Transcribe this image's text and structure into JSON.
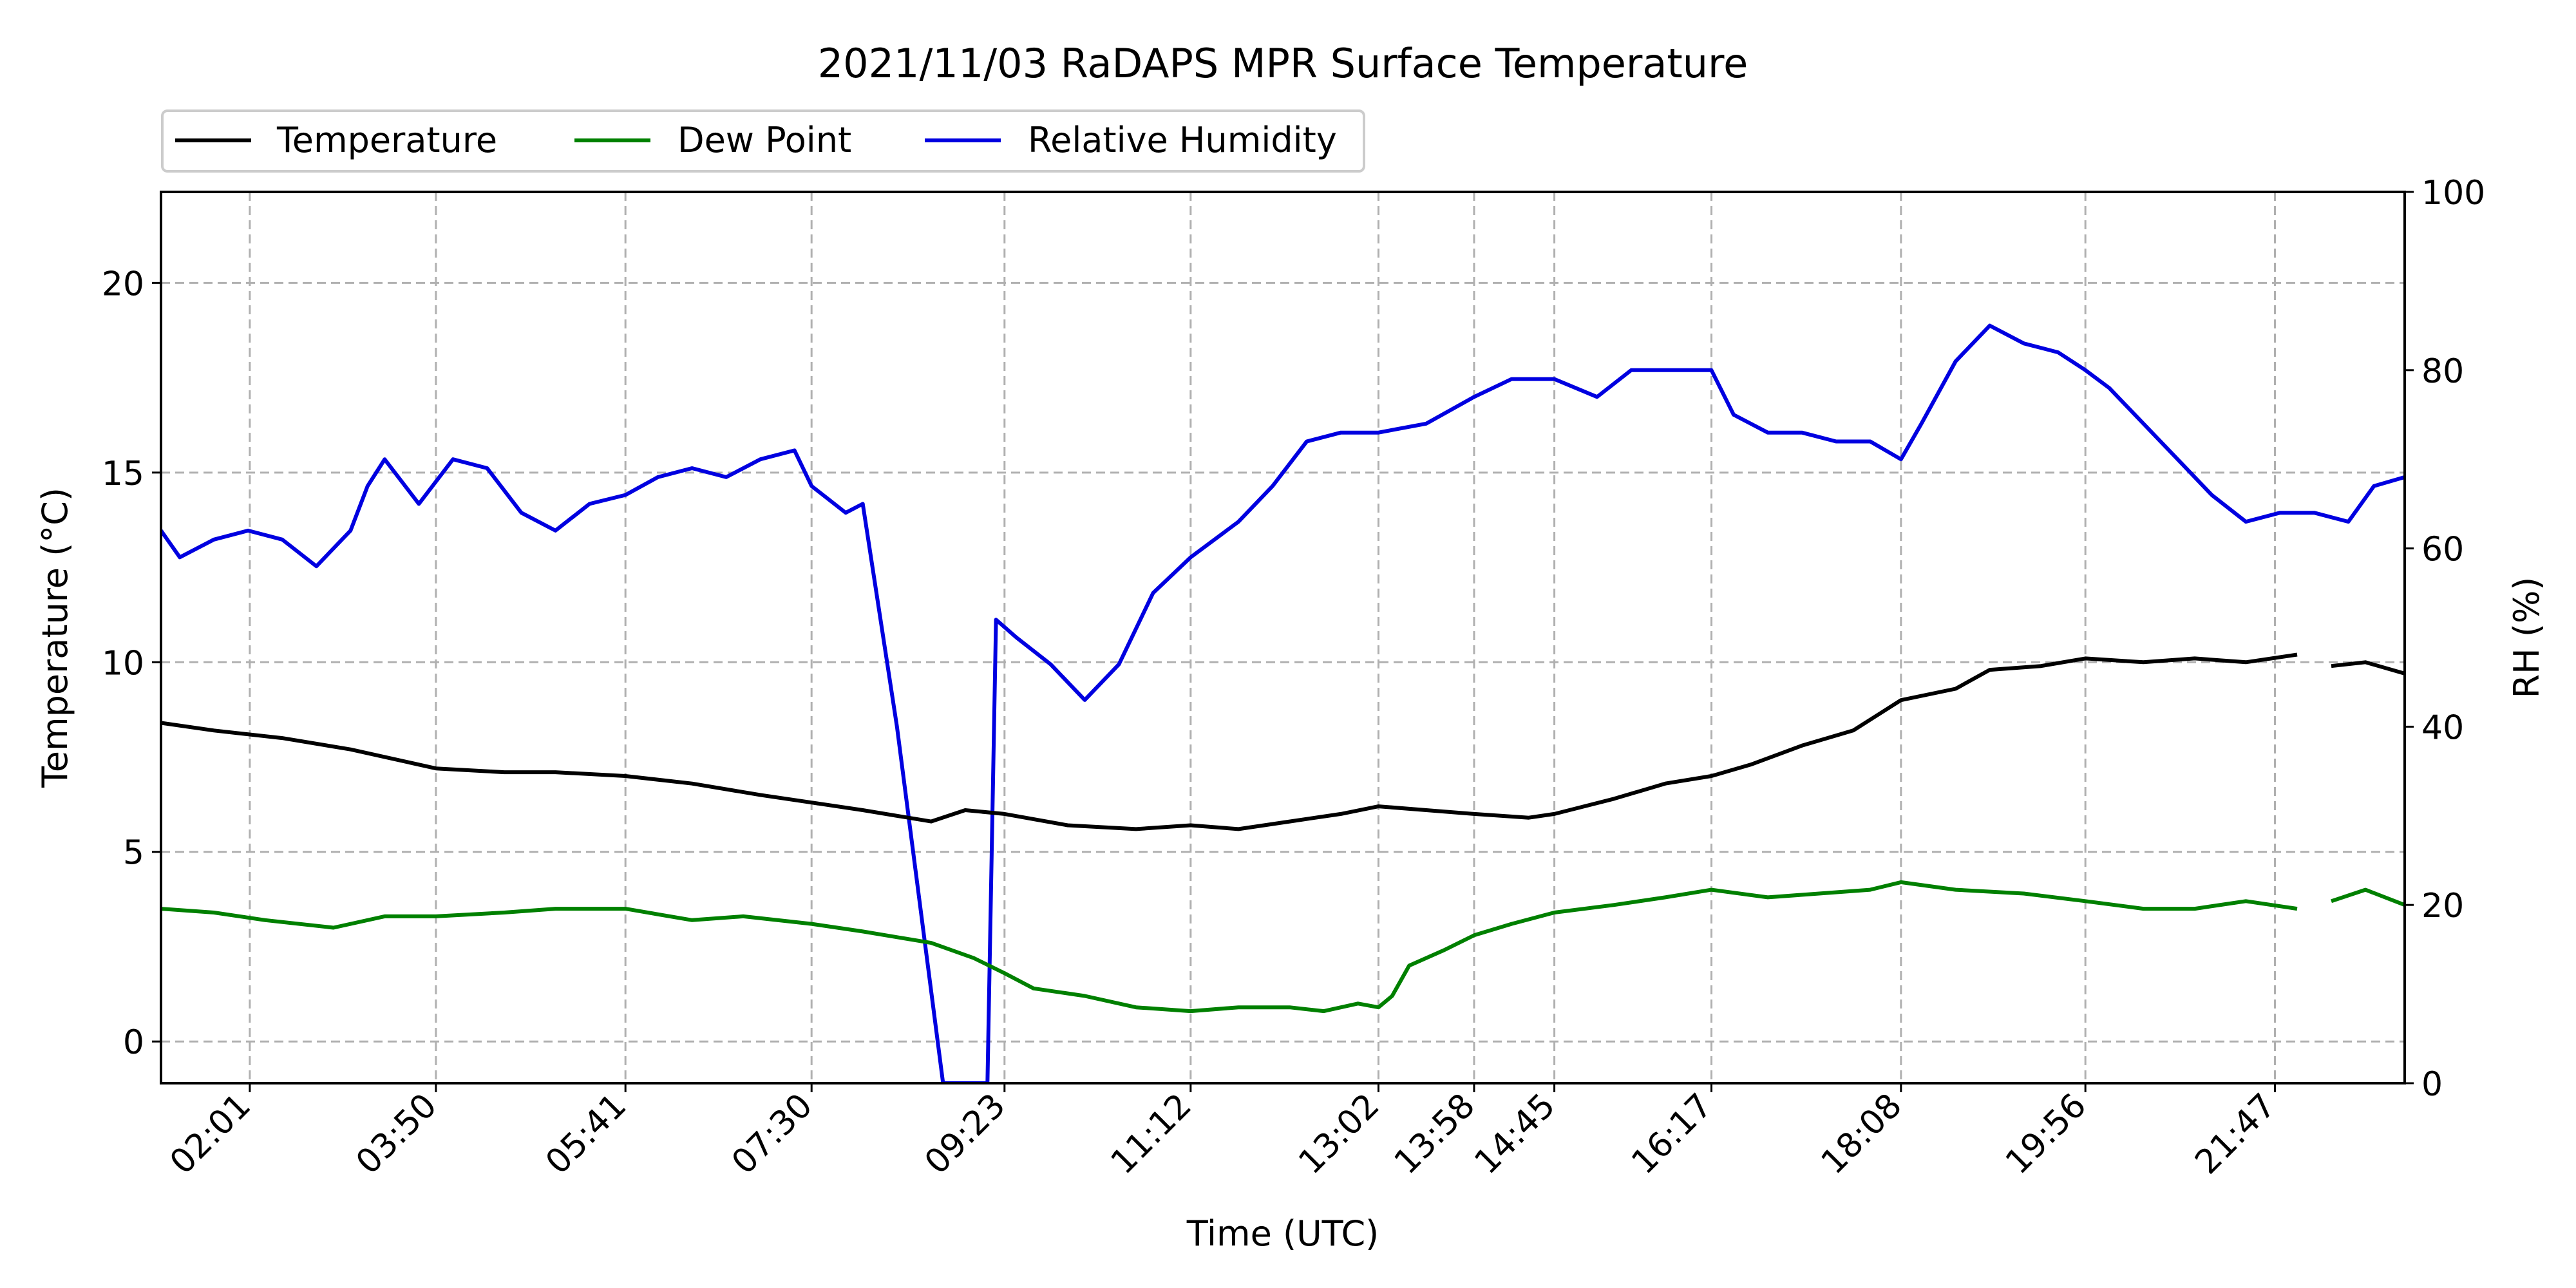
{
  "chart_data": {
    "type": "line",
    "title": "2021/11/03 RaDAPS MPR Surface Temperature",
    "xlabel": "Time (UTC)",
    "ylabel": "Temperature ($^\\circ$C)",
    "ylabel_display": "Temperature (°C)",
    "y2label": "RH (%)",
    "xlim": [
      "01:09",
      "23:03"
    ],
    "ylim": [
      -1.1,
      22.4
    ],
    "y2lim": [
      0,
      100
    ],
    "x_tick_labels": [
      "02:01",
      "03:50",
      "05:41",
      "07:30",
      "09:23",
      "11:12",
      "13:02",
      "13:58",
      "14:45",
      "16:17",
      "18:08",
      "19:56",
      "21:47"
    ],
    "y_ticks": [
      0,
      5,
      10,
      15,
      20
    ],
    "y2_ticks": [
      0,
      20,
      40,
      60,
      80,
      100
    ],
    "grid": true,
    "legend_position": "above top-left",
    "series": [
      {
        "name": "Temperature",
        "axis": "left",
        "color": "#000000",
        "points": [
          [
            "01:09",
            8.4
          ],
          [
            "01:40",
            8.2
          ],
          [
            "02:20",
            8.0
          ],
          [
            "03:00",
            7.7
          ],
          [
            "03:50",
            7.2
          ],
          [
            "04:30",
            7.1
          ],
          [
            "05:00",
            7.1
          ],
          [
            "05:41",
            7.0
          ],
          [
            "06:20",
            6.8
          ],
          [
            "07:00",
            6.5
          ],
          [
            "07:30",
            6.3
          ],
          [
            "08:00",
            6.1
          ],
          [
            "08:40",
            5.8
          ],
          [
            "09:00",
            6.1
          ],
          [
            "09:23",
            6.0
          ],
          [
            "10:00",
            5.7
          ],
          [
            "10:40",
            5.6
          ],
          [
            "11:12",
            5.7
          ],
          [
            "11:40",
            5.6
          ],
          [
            "12:10",
            5.8
          ],
          [
            "12:40",
            6.0
          ],
          [
            "13:02",
            6.2
          ],
          [
            "13:30",
            6.1
          ],
          [
            "13:58",
            6.0
          ],
          [
            "14:30",
            5.9
          ],
          [
            "14:45",
            6.0
          ],
          [
            "15:20",
            6.4
          ],
          [
            "15:50",
            6.8
          ],
          [
            "16:17",
            7.0
          ],
          [
            "16:40",
            7.3
          ],
          [
            "17:10",
            7.8
          ],
          [
            "17:40",
            8.2
          ],
          [
            "18:08",
            9.0
          ],
          [
            "18:40",
            9.3
          ],
          [
            "19:00",
            9.8
          ],
          [
            "19:30",
            9.9
          ],
          [
            "19:56",
            10.1
          ],
          [
            "20:30",
            10.0
          ],
          [
            "21:00",
            10.1
          ],
          [
            "21:30",
            10.0
          ],
          [
            "22:00",
            10.2
          ],
          [
            "22:10",
            null
          ],
          [
            "22:20",
            9.9
          ],
          [
            "22:40",
            10.0
          ],
          [
            "23:03",
            9.7
          ]
        ]
      },
      {
        "name": "Dew Point",
        "axis": "left",
        "color": "#008000",
        "points": [
          [
            "01:09",
            3.5
          ],
          [
            "01:40",
            3.4
          ],
          [
            "02:10",
            3.2
          ],
          [
            "02:50",
            3.0
          ],
          [
            "03:20",
            3.3
          ],
          [
            "03:50",
            3.3
          ],
          [
            "04:30",
            3.4
          ],
          [
            "05:00",
            3.5
          ],
          [
            "05:41",
            3.5
          ],
          [
            "06:20",
            3.2
          ],
          [
            "06:50",
            3.3
          ],
          [
            "07:30",
            3.1
          ],
          [
            "08:00",
            2.9
          ],
          [
            "08:40",
            2.6
          ],
          [
            "09:05",
            2.2
          ],
          [
            "09:23",
            1.8
          ],
          [
            "09:40",
            1.4
          ],
          [
            "10:10",
            1.2
          ],
          [
            "10:40",
            0.9
          ],
          [
            "11:12",
            0.8
          ],
          [
            "11:40",
            0.9
          ],
          [
            "12:10",
            0.9
          ],
          [
            "12:30",
            0.8
          ],
          [
            "12:50",
            1.0
          ],
          [
            "13:02",
            0.9
          ],
          [
            "13:10",
            1.2
          ],
          [
            "13:20",
            2.0
          ],
          [
            "13:40",
            2.4
          ],
          [
            "13:58",
            2.8
          ],
          [
            "14:20",
            3.1
          ],
          [
            "14:45",
            3.4
          ],
          [
            "15:20",
            3.6
          ],
          [
            "15:50",
            3.8
          ],
          [
            "16:17",
            4.0
          ],
          [
            "16:50",
            3.8
          ],
          [
            "17:20",
            3.9
          ],
          [
            "17:50",
            4.0
          ],
          [
            "18:08",
            4.2
          ],
          [
            "18:40",
            4.0
          ],
          [
            "19:20",
            3.9
          ],
          [
            "19:56",
            3.7
          ],
          [
            "20:30",
            3.5
          ],
          [
            "21:00",
            3.5
          ],
          [
            "21:30",
            3.7
          ],
          [
            "22:00",
            3.5
          ],
          [
            "22:10",
            null
          ],
          [
            "22:20",
            3.7
          ],
          [
            "22:40",
            4.0
          ],
          [
            "23:03",
            3.6
          ]
        ]
      },
      {
        "name": "Relative Humidity",
        "axis": "right",
        "color": "#0000e0",
        "points": [
          [
            "01:09",
            62
          ],
          [
            "01:20",
            59
          ],
          [
            "01:40",
            61
          ],
          [
            "02:00",
            62
          ],
          [
            "02:20",
            61
          ],
          [
            "02:40",
            58
          ],
          [
            "03:00",
            62
          ],
          [
            "03:10",
            67
          ],
          [
            "03:20",
            70
          ],
          [
            "03:40",
            65
          ],
          [
            "04:00",
            70
          ],
          [
            "04:20",
            69
          ],
          [
            "04:40",
            64
          ],
          [
            "05:00",
            62
          ],
          [
            "05:20",
            65
          ],
          [
            "05:41",
            66
          ],
          [
            "06:00",
            68
          ],
          [
            "06:20",
            69
          ],
          [
            "06:40",
            68
          ],
          [
            "07:00",
            70
          ],
          [
            "07:20",
            71
          ],
          [
            "07:30",
            67
          ],
          [
            "07:50",
            64
          ],
          [
            "08:00",
            65
          ],
          [
            "08:20",
            40
          ],
          [
            "08:47",
            0
          ],
          [
            "09:13",
            0
          ],
          [
            "09:18",
            52
          ],
          [
            "09:30",
            50
          ],
          [
            "09:50",
            47
          ],
          [
            "10:10",
            43
          ],
          [
            "10:30",
            47
          ],
          [
            "10:50",
            55
          ],
          [
            "11:12",
            59
          ],
          [
            "11:40",
            63
          ],
          [
            "12:00",
            67
          ],
          [
            "12:20",
            72
          ],
          [
            "12:40",
            73
          ],
          [
            "13:02",
            73
          ],
          [
            "13:30",
            74
          ],
          [
            "13:58",
            77
          ],
          [
            "14:20",
            79
          ],
          [
            "14:45",
            79
          ],
          [
            "15:10",
            77
          ],
          [
            "15:30",
            80
          ],
          [
            "15:50",
            80
          ],
          [
            "16:17",
            80
          ],
          [
            "16:30",
            75
          ],
          [
            "16:50",
            73
          ],
          [
            "17:10",
            73
          ],
          [
            "17:30",
            72
          ],
          [
            "17:50",
            72
          ],
          [
            "18:08",
            70
          ],
          [
            "18:20",
            74
          ],
          [
            "18:40",
            81
          ],
          [
            "19:00",
            85
          ],
          [
            "19:20",
            83
          ],
          [
            "19:40",
            82
          ],
          [
            "19:56",
            80
          ],
          [
            "20:10",
            78
          ],
          [
            "20:30",
            74
          ],
          [
            "20:50",
            70
          ],
          [
            "21:10",
            66
          ],
          [
            "21:30",
            63
          ],
          [
            "21:50",
            64
          ],
          [
            "22:10",
            64
          ],
          [
            "22:30",
            63
          ],
          [
            "22:45",
            67
          ],
          [
            "23:03",
            68
          ]
        ]
      }
    ]
  }
}
